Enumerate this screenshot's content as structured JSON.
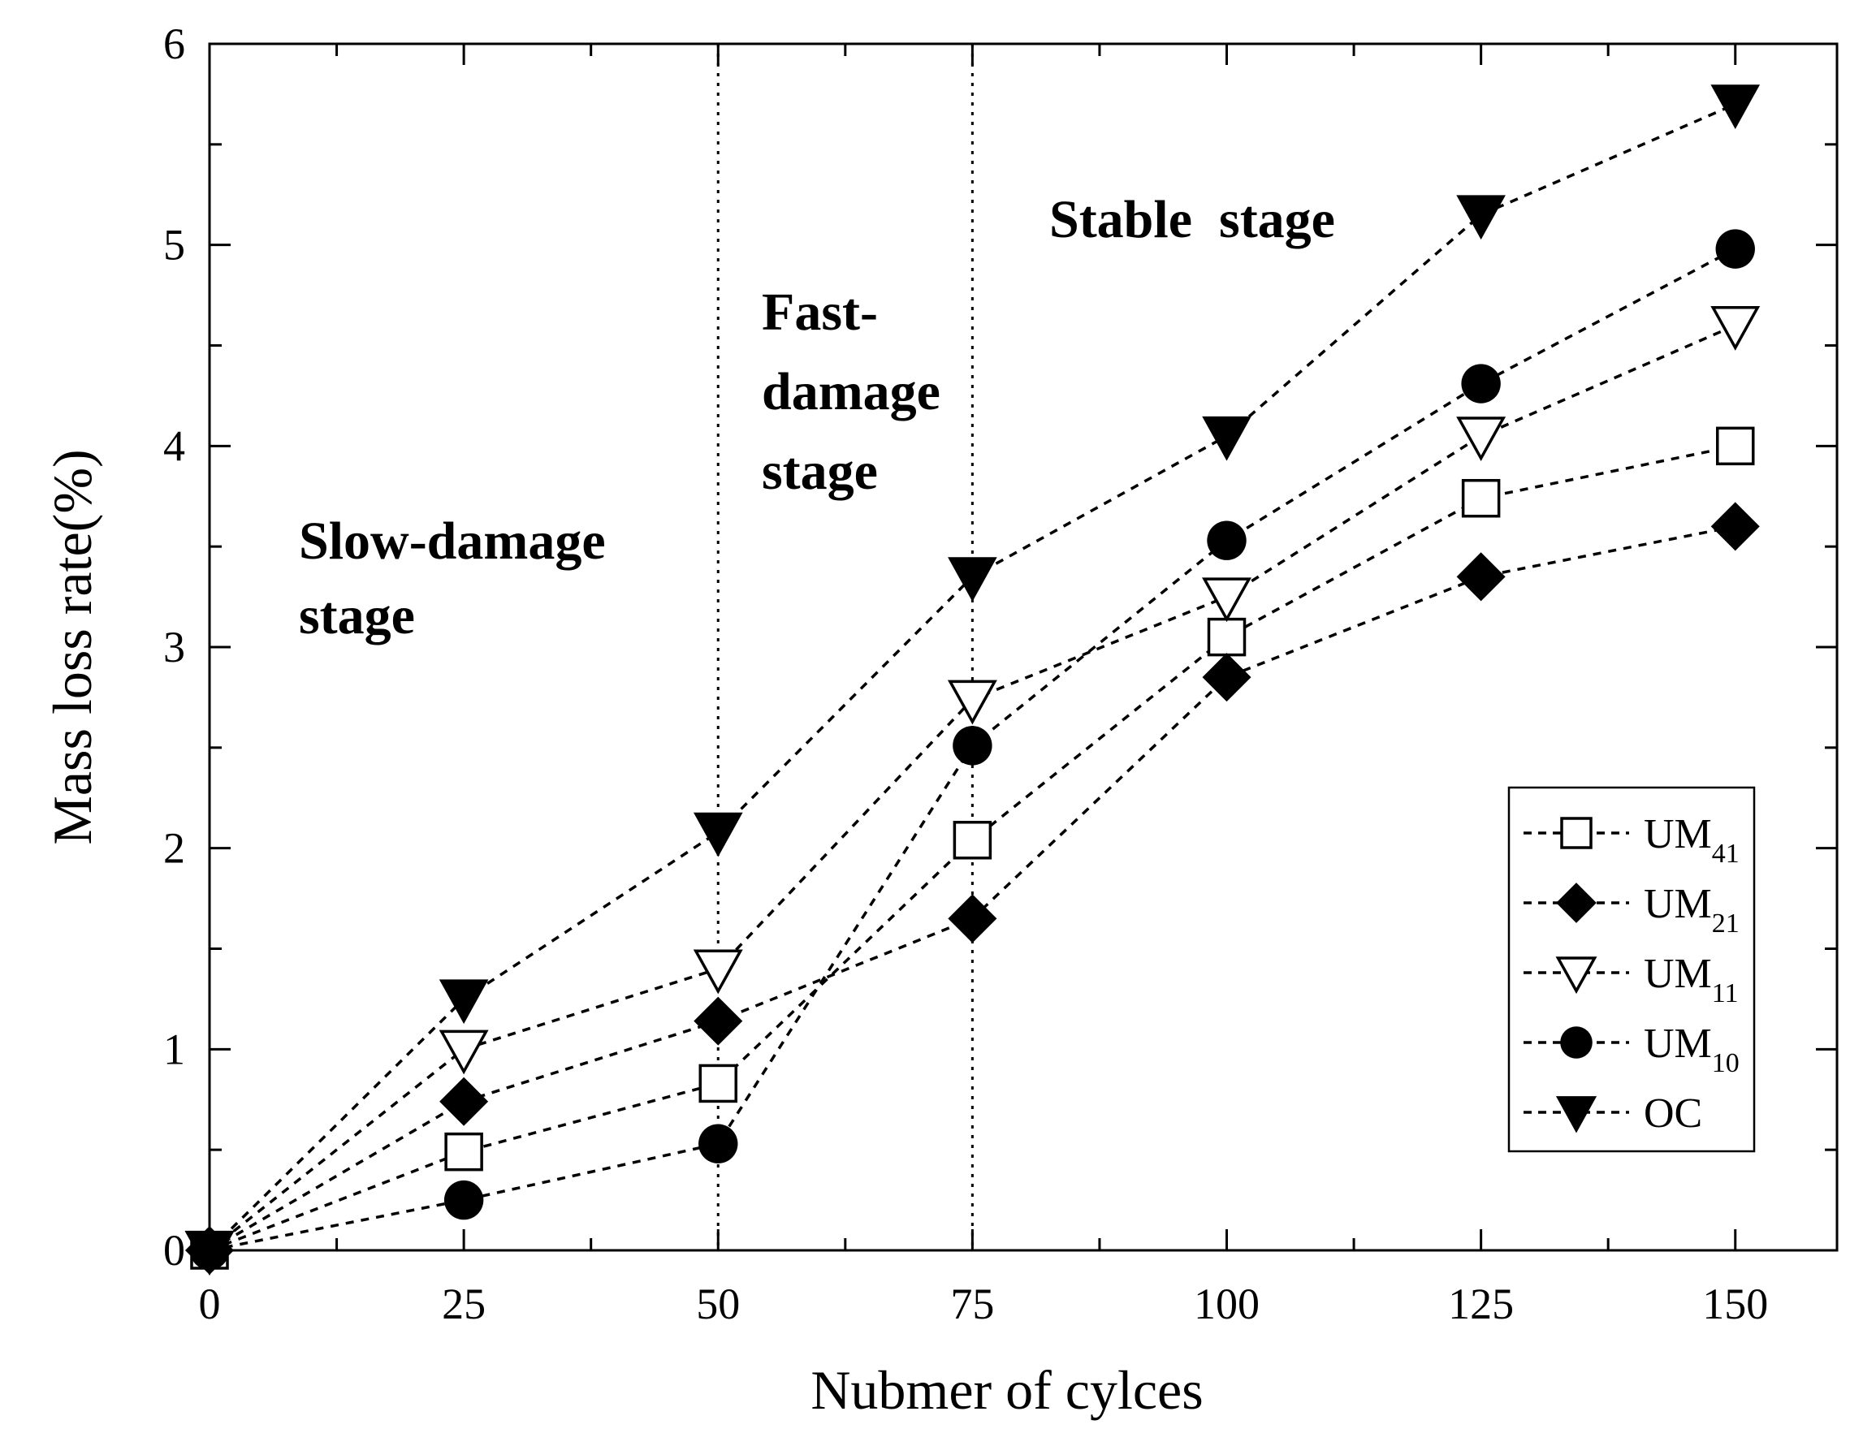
{
  "chart_data": {
    "type": "line",
    "title": "",
    "xlabel": "Nubmer of cylces",
    "ylabel": "Mass loss rate(%)",
    "xlim": [
      0,
      160
    ],
    "ylim": [
      0,
      6
    ],
    "x_ticks": [
      0,
      25,
      50,
      75,
      100,
      125,
      150
    ],
    "y_ticks": [
      0,
      1,
      2,
      3,
      4,
      5,
      6
    ],
    "x": [
      0,
      25,
      50,
      75,
      100,
      125,
      150
    ],
    "series": [
      {
        "name": "UM41",
        "base": "UM",
        "sub": "41",
        "marker": "square-open",
        "values": [
          0,
          0.49,
          0.83,
          2.04,
          3.05,
          3.74,
          4.0
        ]
      },
      {
        "name": "UM21",
        "base": "UM",
        "sub": "21",
        "marker": "diamond-filled",
        "values": [
          0,
          0.74,
          1.14,
          1.65,
          2.85,
          3.35,
          3.6
        ]
      },
      {
        "name": "UM11",
        "base": "UM",
        "sub": "11",
        "marker": "triangle-down-open",
        "values": [
          0,
          1.0,
          1.4,
          2.74,
          3.25,
          4.05,
          4.6
        ]
      },
      {
        "name": "UM10",
        "base": "UM",
        "sub": "10",
        "marker": "circle-filled",
        "values": [
          0,
          0.25,
          0.53,
          2.51,
          3.53,
          4.31,
          4.98
        ]
      },
      {
        "name": "OC",
        "base": "OC",
        "sub": "",
        "marker": "triangle-down-filled",
        "values": [
          0,
          1.25,
          2.08,
          3.35,
          4.05,
          5.15,
          5.7
        ]
      }
    ],
    "stage_dividers": [
      50,
      75
    ],
    "annotations": [
      {
        "lines": [
          "Slow-damage",
          "stage"
        ]
      },
      {
        "lines": [
          "Fast-",
          "damage",
          "stage"
        ]
      },
      {
        "lines": [
          "Stable  stage"
        ]
      }
    ],
    "legend_position": "bottom-right",
    "grid": false,
    "line_style": "dashed"
  }
}
